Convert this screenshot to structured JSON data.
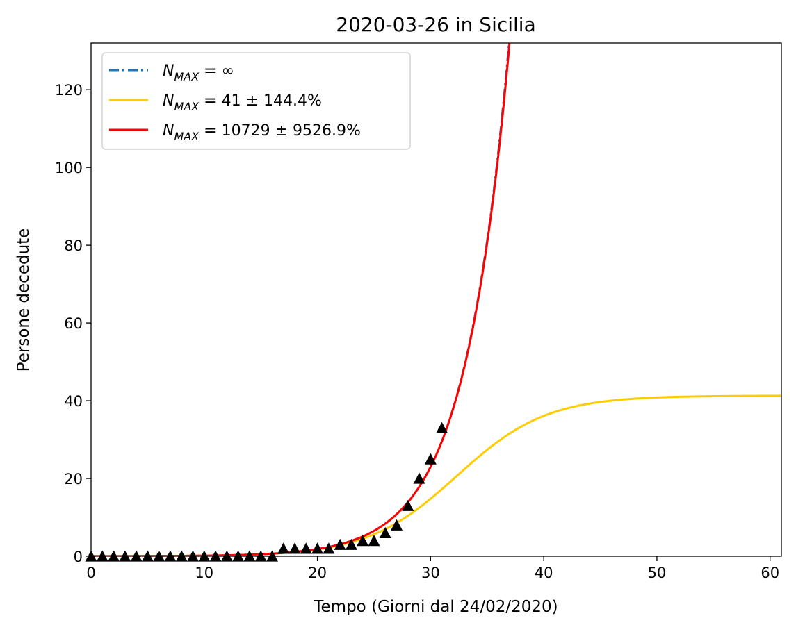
{
  "chart_data": {
    "type": "line",
    "title": "2020-03-26 in Sicilia",
    "xlabel": "Tempo (Giorni dal 24/02/2020)",
    "ylabel": "Persone decedute",
    "xlim": [
      0,
      61
    ],
    "ylim": [
      0,
      132
    ],
    "xticks": [
      0,
      10,
      20,
      30,
      40,
      50,
      60
    ],
    "yticks": [
      0,
      20,
      40,
      60,
      80,
      100,
      120
    ],
    "xtick_labels": [
      "0",
      "10",
      "20",
      "30",
      "40",
      "50",
      "60"
    ],
    "ytick_labels": [
      "0",
      "20",
      "40",
      "60",
      "80",
      "100",
      "120"
    ],
    "grid": false,
    "legend_position": "top-left",
    "series": [
      {
        "name_main": "N",
        "name_sub": "MAX",
        "name_rest": " = ∞",
        "style": "dashdot",
        "color": "#1f77b4",
        "model": "exponential",
        "params": {
          "a": 0.012,
          "k": 0.252
        }
      },
      {
        "name_main": "N",
        "name_sub": "MAX",
        "name_rest": " = 41 ± 144.4%",
        "style": "solid",
        "color": "#ffcc00",
        "model": "logistic",
        "params": {
          "a": 0.012,
          "k": 0.252,
          "n": 41.3
        }
      },
      {
        "name_main": "N",
        "name_sub": "MAX",
        "name_rest": " = 10729 ± 9526.9%",
        "style": "solid",
        "color": "#ff0000",
        "model": "logistic",
        "params": {
          "a": 0.012,
          "k": 0.252,
          "n": 10729
        }
      }
    ],
    "observed": {
      "marker": "triangle",
      "color": "#000000",
      "x": [
        0,
        1,
        2,
        3,
        4,
        5,
        6,
        7,
        8,
        9,
        10,
        11,
        12,
        13,
        14,
        15,
        16,
        17,
        18,
        19,
        20,
        21,
        22,
        23,
        24,
        25,
        26,
        27,
        28,
        29,
        30,
        31
      ],
      "y": [
        0,
        0,
        0,
        0,
        0,
        0,
        0,
        0,
        0,
        0,
        0,
        0,
        0,
        0,
        0,
        0,
        0,
        2,
        2,
        2,
        2,
        2,
        3,
        3,
        4,
        4,
        6,
        8,
        13,
        20,
        25,
        33
      ]
    }
  }
}
